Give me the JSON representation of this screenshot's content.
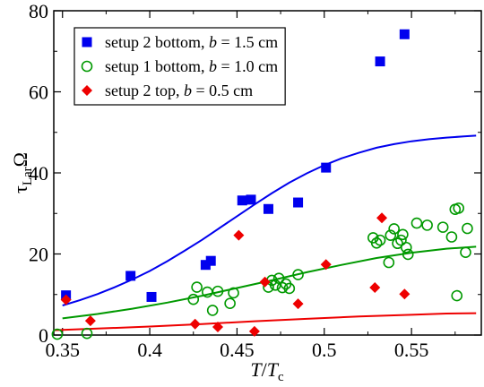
{
  "chart_data": {
    "type": "scatter",
    "xlabel": {
      "main": "T",
      "sep": "/",
      "den": "T",
      "den_sub": "c"
    },
    "ylabel": {
      "tau": "τ",
      "sub": "Lar",
      "omega": "Ω"
    },
    "xlim": [
      0.345,
      0.59
    ],
    "ylim": [
      0,
      80
    ],
    "x_ticks": [
      0.35,
      0.4,
      0.45,
      0.5,
      0.55
    ],
    "x_tick_labels": [
      "0.35",
      "0.4",
      "0.45",
      "0.5",
      "0.55"
    ],
    "y_ticks": [
      0,
      20,
      40,
      60,
      80
    ],
    "y_tick_labels": [
      "0",
      "20",
      "40",
      "60",
      "80"
    ],
    "grid": false,
    "legend_position": "top-left",
    "series": [
      {
        "name": "setup 2 bottom, b = 1.5 cm",
        "legend": {
          "pre": "setup 2 bottom, ",
          "var": "b",
          "post": " = 1.5 cm"
        },
        "marker": "square",
        "color": "#0000ee",
        "points": [
          [
            0.352,
            9.8
          ],
          [
            0.389,
            14.6
          ],
          [
            0.401,
            9.4
          ],
          [
            0.432,
            17.3
          ],
          [
            0.435,
            18.3
          ],
          [
            0.453,
            33.2
          ],
          [
            0.458,
            33.4
          ],
          [
            0.468,
            31.1
          ],
          [
            0.485,
            32.7
          ],
          [
            0.501,
            41.3
          ],
          [
            0.532,
            67.5
          ],
          [
            0.546,
            74.2
          ]
        ],
        "fit": [
          [
            0.35,
            7.3
          ],
          [
            0.36,
            8.6
          ],
          [
            0.37,
            10.1
          ],
          [
            0.38,
            11.8
          ],
          [
            0.39,
            13.7
          ],
          [
            0.4,
            15.8
          ],
          [
            0.41,
            18.2
          ],
          [
            0.42,
            20.8
          ],
          [
            0.43,
            23.5
          ],
          [
            0.44,
            26.4
          ],
          [
            0.45,
            29.3
          ],
          [
            0.46,
            32.2
          ],
          [
            0.47,
            35.0
          ],
          [
            0.48,
            37.6
          ],
          [
            0.49,
            39.9
          ],
          [
            0.5,
            41.9
          ],
          [
            0.51,
            43.6
          ],
          [
            0.52,
            45.0
          ],
          [
            0.53,
            46.2
          ],
          [
            0.54,
            47.1
          ],
          [
            0.55,
            47.8
          ],
          [
            0.56,
            48.3
          ],
          [
            0.57,
            48.7
          ],
          [
            0.58,
            49.0
          ],
          [
            0.587,
            49.2
          ]
        ]
      },
      {
        "name": "setup 1 bottom, b = 1.0 cm",
        "legend": {
          "pre": "setup 1 bottom, ",
          "var": "b",
          "post": " = 1.0 cm"
        },
        "marker": "open-circle",
        "color": "#009900",
        "points": [
          [
            0.347,
            0.2
          ],
          [
            0.364,
            0.4
          ],
          [
            0.425,
            8.8
          ],
          [
            0.427,
            11.8
          ],
          [
            0.433,
            10.6
          ],
          [
            0.436,
            6.1
          ],
          [
            0.439,
            10.8
          ],
          [
            0.446,
            7.8
          ],
          [
            0.448,
            10.4
          ],
          [
            0.468,
            11.8
          ],
          [
            0.47,
            13.5
          ],
          [
            0.472,
            12.3
          ],
          [
            0.474,
            14.0
          ],
          [
            0.476,
            11.7
          ],
          [
            0.478,
            12.6
          ],
          [
            0.48,
            11.5
          ],
          [
            0.485,
            14.9
          ],
          [
            0.528,
            24.0
          ],
          [
            0.53,
            22.7
          ],
          [
            0.532,
            23.4
          ],
          [
            0.537,
            17.9
          ],
          [
            0.538,
            24.6
          ],
          [
            0.54,
            26.2
          ],
          [
            0.542,
            22.6
          ],
          [
            0.544,
            23.4
          ],
          [
            0.545,
            24.8
          ],
          [
            0.547,
            21.6
          ],
          [
            0.548,
            19.9
          ],
          [
            0.553,
            27.6
          ],
          [
            0.559,
            27.1
          ],
          [
            0.568,
            26.6
          ],
          [
            0.573,
            24.2
          ],
          [
            0.575,
            31.0
          ],
          [
            0.576,
            9.7
          ],
          [
            0.577,
            31.3
          ],
          [
            0.581,
            20.4
          ],
          [
            0.582,
            26.3
          ]
        ],
        "fit": [
          [
            0.35,
            4.1
          ],
          [
            0.37,
            5.2
          ],
          [
            0.39,
            6.5
          ],
          [
            0.41,
            8.0
          ],
          [
            0.43,
            9.7
          ],
          [
            0.45,
            11.6
          ],
          [
            0.47,
            13.5
          ],
          [
            0.49,
            15.5
          ],
          [
            0.51,
            17.3
          ],
          [
            0.53,
            19.0
          ],
          [
            0.55,
            20.3
          ],
          [
            0.57,
            21.3
          ],
          [
            0.587,
            21.8
          ]
        ]
      },
      {
        "name": "setup 2 top, b = 0.5 cm",
        "legend": {
          "pre": "setup 2 top, ",
          "var": "b",
          "post": " = 0.5 cm"
        },
        "marker": "diamond",
        "color": "#ee0000",
        "points": [
          [
            0.352,
            8.7
          ],
          [
            0.366,
            3.5
          ],
          [
            0.426,
            2.7
          ],
          [
            0.439,
            2.0
          ],
          [
            0.451,
            24.6
          ],
          [
            0.46,
            0.9
          ],
          [
            0.466,
            13.1
          ],
          [
            0.485,
            7.7
          ],
          [
            0.501,
            17.4
          ],
          [
            0.529,
            11.7
          ],
          [
            0.533,
            28.9
          ],
          [
            0.546,
            10.1
          ]
        ],
        "fit": [
          [
            0.345,
            1.2
          ],
          [
            0.37,
            1.6
          ],
          [
            0.4,
            2.1
          ],
          [
            0.43,
            2.7
          ],
          [
            0.46,
            3.4
          ],
          [
            0.49,
            4.0
          ],
          [
            0.52,
            4.6
          ],
          [
            0.55,
            5.0
          ],
          [
            0.57,
            5.3
          ],
          [
            0.587,
            5.4
          ]
        ]
      }
    ]
  }
}
